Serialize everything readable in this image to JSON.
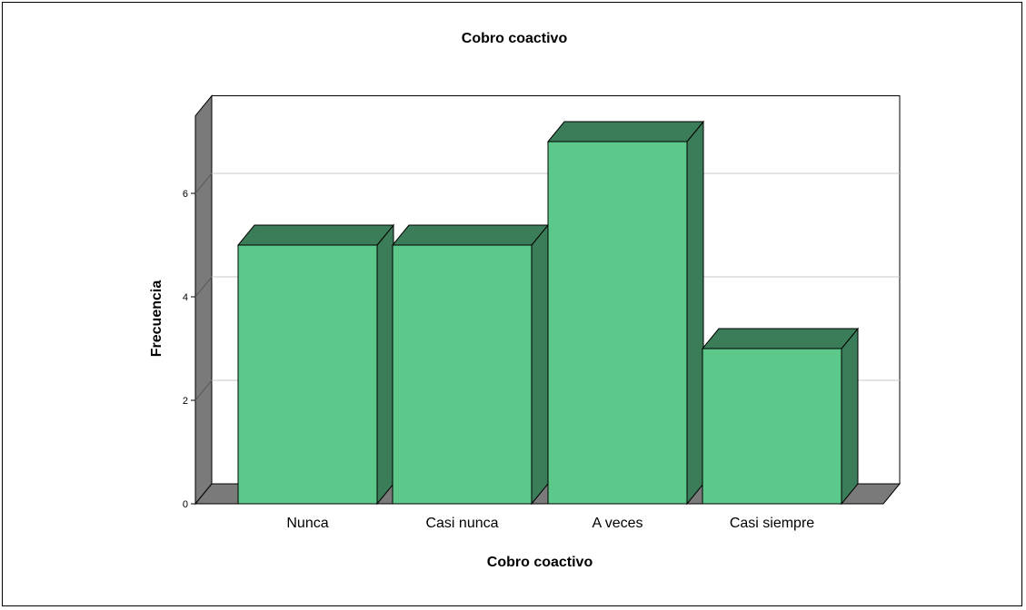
{
  "chart_data": {
    "type": "bar",
    "title": "Cobro coactivo",
    "xlabel": "Cobro coactivo",
    "ylabel": "Frecuencia",
    "categories": [
      "Nunca",
      "Casi nunca",
      "A veces",
      "Casi siempre"
    ],
    "values": [
      5,
      5,
      7,
      3
    ],
    "yticks": [
      "0",
      "2",
      "4",
      "6"
    ],
    "ylim": [
      0,
      7.5
    ],
    "grid": true,
    "three_d": true,
    "colors": {
      "bar_front": "#5cc98b",
      "bar_top": "#3a7d58",
      "bar_side": "#3a7d58",
      "wall": "#7a7a7a",
      "grid": "#c8c8c8"
    }
  }
}
